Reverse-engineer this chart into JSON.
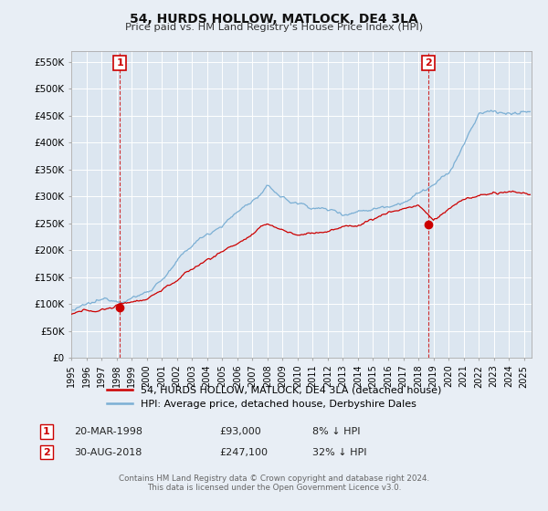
{
  "title": "54, HURDS HOLLOW, MATLOCK, DE4 3LA",
  "subtitle": "Price paid vs. HM Land Registry's House Price Index (HPI)",
  "legend_line1": "54, HURDS HOLLOW, MATLOCK, DE4 3LA (detached house)",
  "legend_line2": "HPI: Average price, detached house, Derbyshire Dales",
  "property_color": "#cc0000",
  "hpi_color": "#7bafd4",
  "annotation1_date": "20-MAR-1998",
  "annotation1_price": "£93,000",
  "annotation1_hpi": "8% ↓ HPI",
  "annotation2_date": "30-AUG-2018",
  "annotation2_price": "£247,100",
  "annotation2_hpi": "32% ↓ HPI",
  "footer1": "Contains HM Land Registry data © Crown copyright and database right 2024.",
  "footer2": "This data is licensed under the Open Government Licence v3.0.",
  "ylim": [
    0,
    570000
  ],
  "yticks": [
    0,
    50000,
    100000,
    150000,
    200000,
    250000,
    300000,
    350000,
    400000,
    450000,
    500000,
    550000
  ],
  "ytick_labels": [
    "£0",
    "£50K",
    "£100K",
    "£150K",
    "£200K",
    "£250K",
    "£300K",
    "£350K",
    "£400K",
    "£450K",
    "£500K",
    "£550K"
  ],
  "fig_bg": "#e8eef5",
  "plot_bg": "#dce6f0",
  "grid_color": "#ffffff",
  "sale1_x": 1998.22,
  "sale1_y": 93000,
  "sale2_x": 2018.66,
  "sale2_y": 247100,
  "xlim_left": 1995.0,
  "xlim_right": 2025.5
}
